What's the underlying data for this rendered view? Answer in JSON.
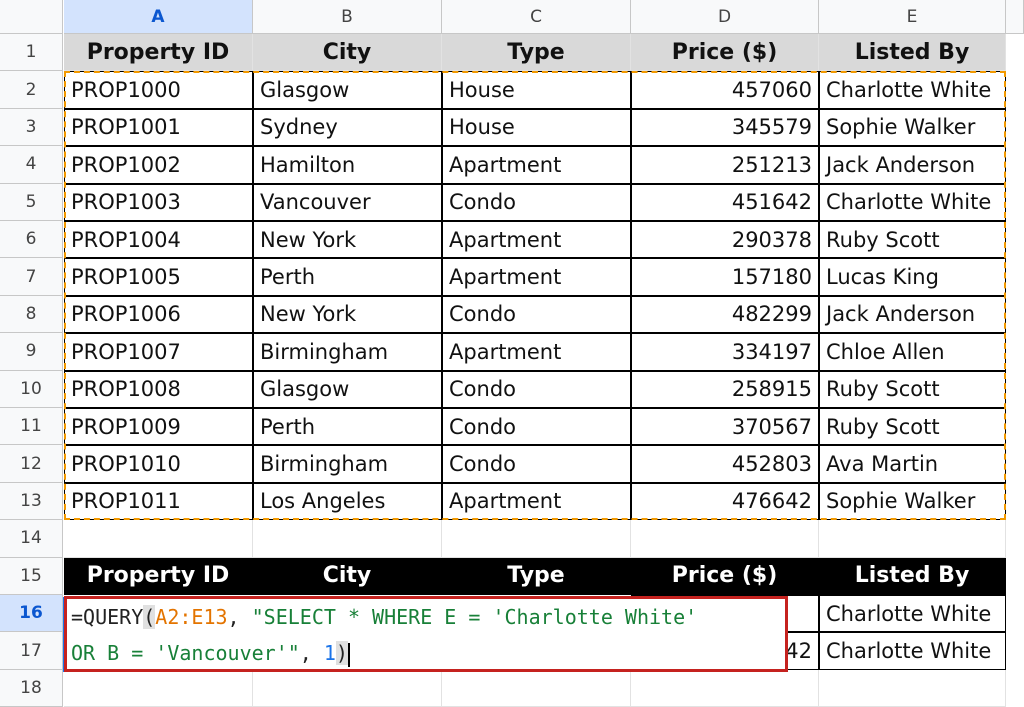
{
  "columns": [
    "A",
    "B",
    "C",
    "D",
    "E"
  ],
  "rows": [
    "1",
    "2",
    "3",
    "4",
    "5",
    "6",
    "7",
    "8",
    "9",
    "10",
    "11",
    "12",
    "13",
    "14",
    "15",
    "16",
    "17",
    "18"
  ],
  "selected_column": "A",
  "selected_row": "16",
  "table_header": [
    "Property ID",
    "City",
    "Type",
    "Price ($)",
    "Listed By"
  ],
  "table_rows": [
    [
      "PROP1000",
      "Glasgow",
      "House",
      "457060",
      "Charlotte White"
    ],
    [
      "PROP1001",
      "Sydney",
      "House",
      "345579",
      "Sophie Walker"
    ],
    [
      "PROP1002",
      "Hamilton",
      "Apartment",
      "251213",
      "Jack Anderson"
    ],
    [
      "PROP1003",
      "Vancouver",
      "Condo",
      "451642",
      "Charlotte White"
    ],
    [
      "PROP1004",
      "New York",
      "Apartment",
      "290378",
      "Ruby Scott"
    ],
    [
      "PROP1005",
      "Perth",
      "Apartment",
      "157180",
      "Lucas King"
    ],
    [
      "PROP1006",
      "New York",
      "Condo",
      "482299",
      "Jack Anderson"
    ],
    [
      "PROP1007",
      "Birmingham",
      "Apartment",
      "334197",
      "Chloe Allen"
    ],
    [
      "PROP1008",
      "Glasgow",
      "Condo",
      "258915",
      "Ruby Scott"
    ],
    [
      "PROP1009",
      "Perth",
      "Condo",
      "370567",
      "Ruby Scott"
    ],
    [
      "PROP1010",
      "Birmingham",
      "Condo",
      "452803",
      "Ava Martin"
    ],
    [
      "PROP1011",
      "Los Angeles",
      "Apartment",
      "476642",
      "Sophie Walker"
    ]
  ],
  "result_header": [
    "Property ID",
    "City",
    "Type",
    "Price ($)",
    "Listed By"
  ],
  "result_rows": [
    {
      "listed_by": "Charlotte White"
    },
    {
      "price_partial": "42",
      "listed_by": "Charlotte White"
    }
  ],
  "formula": {
    "prefix": "=QUERY",
    "open_paren": "(",
    "range": "A2:E13",
    "sep1": ", ",
    "string_line1": "\"SELECT * WHERE E = 'Charlotte White'",
    "string_line2": "OR B = 'Vancouver'\"",
    "sep2": ", ",
    "number": "1",
    "close_paren": ")"
  },
  "colors": {
    "dashed_range": "#f29900",
    "editor_border": "#c5221f",
    "selection": "#1a73e8"
  }
}
